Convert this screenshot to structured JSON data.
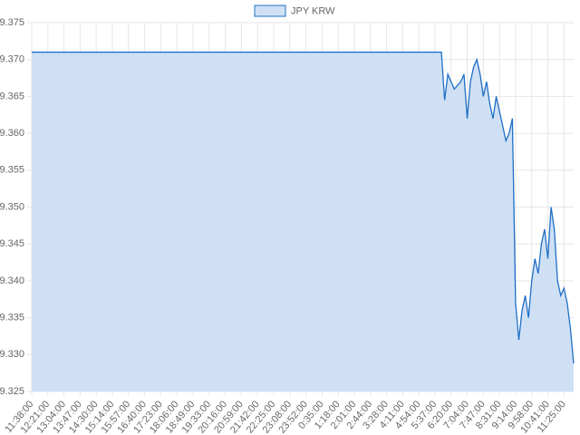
{
  "chart_data": {
    "type": "line",
    "series": [
      {
        "name": "JPY KRW",
        "color": "#1f6fc5",
        "fill": "#cfe0f5",
        "values": [
          9.371,
          9.371,
          9.371,
          9.371,
          9.371,
          9.371,
          9.371,
          9.371,
          9.371,
          9.371,
          9.371,
          9.371,
          9.371,
          9.371,
          9.371,
          9.371,
          9.371,
          9.371,
          9.371,
          9.371,
          9.371,
          9.371,
          9.371,
          9.371,
          9.371,
          9.371,
          9.371,
          9.371,
          9.371,
          9.371,
          9.371,
          9.371,
          9.371,
          9.371,
          9.371,
          9.371,
          9.371,
          9.371,
          9.371,
          9.371,
          9.371,
          9.371,
          9.371,
          9.371,
          9.371,
          9.371,
          9.371,
          9.371,
          9.371,
          9.371,
          9.371,
          9.371,
          9.371,
          9.371,
          9.371,
          9.371,
          9.371,
          9.371,
          9.371,
          9.371,
          9.371,
          9.371,
          9.371,
          9.371,
          9.371,
          9.371,
          9.371,
          9.371,
          9.371,
          9.371,
          9.371,
          9.371,
          9.371,
          9.371,
          9.371,
          9.371,
          9.371,
          9.371,
          9.371,
          9.371,
          9.371,
          9.371,
          9.371,
          9.371,
          9.371,
          9.371,
          9.371,
          9.371,
          9.371,
          9.371,
          9.371,
          9.371,
          9.371,
          9.371,
          9.371,
          9.371,
          9.371,
          9.371,
          9.371,
          9.371,
          9.371,
          9.371,
          9.371,
          9.371,
          9.371,
          9.371,
          9.371,
          9.371,
          9.371,
          9.371,
          9.371,
          9.371,
          9.371,
          9.371,
          9.371,
          9.371,
          9.371,
          9.371,
          9.371,
          9.371,
          9.371,
          9.371,
          9.371,
          9.371,
          9.371,
          9.371,
          9.371,
          9.371,
          9.3645,
          9.368,
          9.367,
          9.366,
          9.3665,
          9.367,
          9.368,
          9.362,
          9.367,
          9.369,
          9.37,
          9.368,
          9.365,
          9.367,
          9.364,
          9.362,
          9.365,
          9.363,
          9.361,
          9.359,
          9.36,
          9.362,
          9.337,
          9.332,
          9.336,
          9.338,
          9.335,
          9.34,
          9.343,
          9.341,
          9.345,
          9.347,
          9.343,
          9.35,
          9.347,
          9.34,
          9.338,
          9.339,
          9.337,
          9.3335,
          9.3288
        ]
      }
    ],
    "categories": [
      "11:38:00",
      null,
      null,
      null,
      null,
      "12:21:00",
      null,
      null,
      null,
      null,
      "13:04:00",
      null,
      null,
      null,
      null,
      "13:47:00",
      null,
      null,
      null,
      null,
      "14:30:00",
      null,
      null,
      null,
      null,
      "15:14:00",
      null,
      null,
      null,
      null,
      "15:57:00",
      null,
      null,
      null,
      null,
      "16:40:00",
      null,
      null,
      null,
      null,
      "17:23:00",
      null,
      null,
      null,
      null,
      "18:06:00",
      null,
      null,
      null,
      null,
      "18:49:00",
      null,
      null,
      null,
      null,
      "19:33:00",
      null,
      null,
      null,
      null,
      "20:16:00",
      null,
      null,
      null,
      null,
      "20:59:00",
      null,
      null,
      null,
      null,
      "21:42:00",
      null,
      null,
      null,
      null,
      "22:25:00",
      null,
      null,
      null,
      null,
      "23:08:00",
      null,
      null,
      null,
      null,
      "23:52:00",
      null,
      null,
      null,
      null,
      "0:35:00",
      null,
      null,
      null,
      null,
      "1:18:00",
      null,
      null,
      null,
      null,
      "2:01:00",
      null,
      null,
      null,
      null,
      "2:44:00",
      null,
      null,
      null,
      null,
      "3:28:00",
      null,
      null,
      null,
      null,
      "4:11:00",
      null,
      null,
      null,
      null,
      "4:54:00",
      null,
      null,
      null,
      null,
      "5:37:00",
      null,
      null,
      null,
      null,
      "6:20:00",
      null,
      null,
      null,
      null,
      "7:04:00",
      null,
      null,
      null,
      null,
      "7:47:00",
      null,
      null,
      null,
      null,
      "8:31:00",
      null,
      null,
      null,
      null,
      "9:14:00",
      null,
      null,
      null,
      null,
      "9:58:00",
      null,
      null,
      null,
      null,
      "10:41:00",
      null,
      null,
      null,
      null,
      "11:25:00",
      null,
      null,
      null
    ],
    "ylim": [
      9.325,
      9.375
    ],
    "yticks": [
      9.325,
      {
        "value": 9.33,
        "label": "9.330"
      },
      9.335,
      {
        "value": 9.34,
        "label": "9.340"
      },
      9.345,
      {
        "value": 9.35,
        "label": "9.350"
      },
      9.355,
      {
        "value": 9.36,
        "label": "9.360"
      },
      9.365,
      {
        "value": 9.37,
        "label": "9.370"
      },
      9.375
    ],
    "grid": true,
    "legend": "top"
  }
}
